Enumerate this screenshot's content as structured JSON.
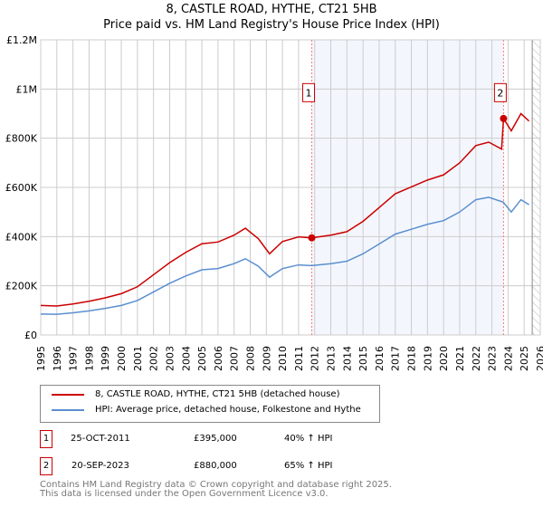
{
  "chart_data": {
    "type": "line",
    "title": "8, CASTLE ROAD, HYTHE, CT21 5HB",
    "subtitle": "Price paid vs. HM Land Registry's House Price Index (HPI)",
    "xlim": [
      1995,
      2026
    ],
    "ylim": [
      0,
      1200000
    ],
    "x_ticks": [
      1995,
      1996,
      1997,
      1998,
      1999,
      2000,
      2001,
      2002,
      2003,
      2004,
      2005,
      2006,
      2007,
      2008,
      2009,
      2010,
      2011,
      2012,
      2013,
      2014,
      2015,
      2016,
      2017,
      2018,
      2019,
      2020,
      2021,
      2022,
      2023,
      2024,
      2025,
      2026
    ],
    "y_ticks": [
      {
        "v": 0,
        "l": "£0"
      },
      {
        "v": 200000,
        "l": "£200K"
      },
      {
        "v": 400000,
        "l": "£400K"
      },
      {
        "v": 600000,
        "l": "£600K"
      },
      {
        "v": 800000,
        "l": "£800K"
      },
      {
        "v": 1000000,
        "l": "£1M"
      },
      {
        "v": 1200000,
        "l": "£1.2M"
      }
    ],
    "grid": true,
    "series": [
      {
        "name": "8, CASTLE ROAD, HYTHE, CT21 5HB (detached house)",
        "color": "#cc0000",
        "x": [
          1995,
          1996,
          1997,
          1998,
          1999,
          2000,
          2001,
          2002,
          2003,
          2004,
          2005,
          2006,
          2007,
          2007.7,
          2008.5,
          2009.2,
          2010,
          2011,
          2011.8,
          2013,
          2014,
          2015,
          2016,
          2017,
          2018,
          2019,
          2020,
          2021,
          2022,
          2022.8,
          2023.6,
          2023.72,
          2024.2,
          2024.8,
          2025.3
        ],
        "y": [
          120000,
          118000,
          126000,
          137000,
          151000,
          168000,
          196000,
          245000,
          294000,
          336000,
          371000,
          378000,
          406000,
          434000,
          392000,
          330000,
          380000,
          399000,
          395000,
          406000,
          420000,
          462000,
          518000,
          574000,
          602000,
          630000,
          651000,
          700000,
          770000,
          784000,
          756000,
          880000,
          830000,
          900000,
          870000
        ]
      },
      {
        "name": "HPI: Average price, detached house, Folkestone and Hythe",
        "color": "#5b8fd0",
        "x": [
          1995,
          1996,
          1997,
          1998,
          1999,
          2000,
          2001,
          2002,
          2003,
          2004,
          2005,
          2006,
          2007,
          2007.7,
          2008.5,
          2009.2,
          2010,
          2011,
          2011.8,
          2013,
          2014,
          2015,
          2016,
          2017,
          2018,
          2019,
          2020,
          2021,
          2022,
          2022.8,
          2023.7,
          2024.2,
          2024.8,
          2025.3
        ],
        "y": [
          85000,
          84000,
          90000,
          98000,
          108000,
          120000,
          140000,
          175000,
          210000,
          240000,
          265000,
          270000,
          290000,
          310000,
          280000,
          235000,
          270000,
          285000,
          282000,
          290000,
          300000,
          330000,
          370000,
          410000,
          430000,
          450000,
          465000,
          500000,
          550000,
          560000,
          540000,
          500000,
          550000,
          530000
        ]
      }
    ],
    "sales": [
      {
        "label": "1",
        "date": "25-OCT-2011",
        "x": 2011.82,
        "price": "£395,000",
        "value": 395000,
        "hpi": "40% ↑ HPI"
      },
      {
        "label": "2",
        "date": "20-SEP-2023",
        "x": 2023.72,
        "price": "£880,000",
        "value": 880000,
        "hpi": "65% ↑ HPI"
      }
    ],
    "forecast_start": 2025.5,
    "footer": [
      "Contains HM Land Registry data © Crown copyright and database right 2025.",
      "This data is licensed under the Open Government Licence v3.0."
    ]
  }
}
